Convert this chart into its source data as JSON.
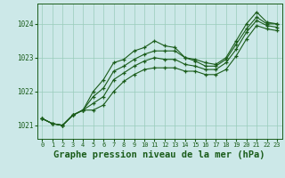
{
  "bg_color": "#cce8e8",
  "grid_color": "#99ccbb",
  "line_color": "#1a5c1a",
  "xlabel": "Graphe pression niveau de la mer (hPa)",
  "xlabel_fontsize": 7.5,
  "ylabel_ticks": [
    1021,
    1022,
    1023,
    1024
  ],
  "xlim": [
    -0.5,
    23.5
  ],
  "ylim": [
    1020.6,
    1024.6
  ],
  "series": [
    [
      1021.2,
      1021.05,
      1021.0,
      1021.3,
      1021.45,
      1022.0,
      1022.35,
      1022.85,
      1022.95,
      1023.2,
      1023.3,
      1023.5,
      1023.35,
      1023.3,
      1023.0,
      1022.95,
      1022.85,
      1022.8,
      1023.0,
      1023.5,
      1024.0,
      1024.35,
      1024.05,
      1024.0
    ],
    [
      1021.2,
      1021.05,
      1021.0,
      1021.3,
      1021.45,
      1021.85,
      1022.1,
      1022.6,
      1022.75,
      1022.95,
      1023.1,
      1023.2,
      1023.2,
      1023.2,
      1023.0,
      1022.9,
      1022.75,
      1022.75,
      1022.95,
      1023.4,
      1023.85,
      1024.2,
      1024.0,
      1024.0
    ],
    [
      1021.2,
      1021.05,
      1021.0,
      1021.3,
      1021.45,
      1021.65,
      1021.85,
      1022.35,
      1022.55,
      1022.75,
      1022.9,
      1023.0,
      1022.95,
      1022.95,
      1022.8,
      1022.75,
      1022.65,
      1022.65,
      1022.85,
      1023.25,
      1023.75,
      1024.1,
      1023.95,
      1023.9
    ],
    [
      1021.2,
      1021.05,
      1021.0,
      1021.3,
      1021.45,
      1021.45,
      1021.6,
      1022.0,
      1022.3,
      1022.5,
      1022.65,
      1022.7,
      1022.7,
      1022.7,
      1022.6,
      1022.6,
      1022.5,
      1022.5,
      1022.65,
      1023.05,
      1023.55,
      1023.95,
      1023.85,
      1023.8
    ]
  ]
}
